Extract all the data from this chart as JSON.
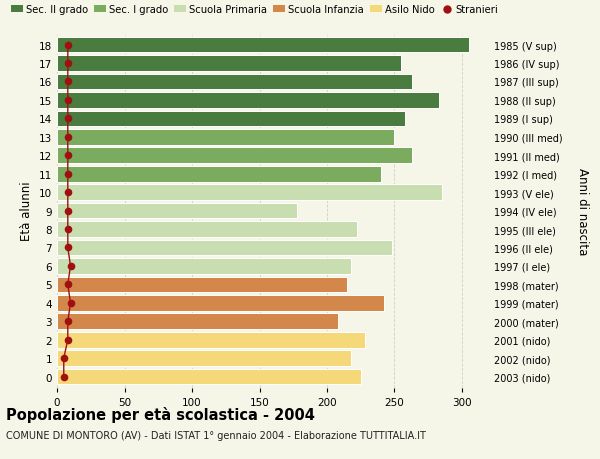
{
  "ages": [
    18,
    17,
    16,
    15,
    14,
    13,
    12,
    11,
    10,
    9,
    8,
    7,
    6,
    5,
    4,
    3,
    2,
    1,
    0
  ],
  "right_labels": [
    "1985 (V sup)",
    "1986 (IV sup)",
    "1987 (III sup)",
    "1988 (II sup)",
    "1989 (I sup)",
    "1990 (III med)",
    "1991 (II med)",
    "1992 (I med)",
    "1993 (V ele)",
    "1994 (IV ele)",
    "1995 (III ele)",
    "1996 (II ele)",
    "1997 (I ele)",
    "1998 (mater)",
    "1999 (mater)",
    "2000 (mater)",
    "2001 (nido)",
    "2002 (nido)",
    "2003 (nido)"
  ],
  "bar_values": [
    305,
    255,
    263,
    283,
    258,
    250,
    263,
    240,
    285,
    178,
    222,
    248,
    218,
    215,
    242,
    208,
    228,
    218,
    225
  ],
  "stranieri_values": [
    8,
    8,
    8,
    8,
    8,
    8,
    8,
    8,
    8,
    8,
    8,
    8,
    10,
    8,
    10,
    8,
    8,
    5,
    5
  ],
  "bar_colors": [
    "#4a7c3f",
    "#4a7c3f",
    "#4a7c3f",
    "#4a7c3f",
    "#4a7c3f",
    "#7aab5e",
    "#7aab5e",
    "#7aab5e",
    "#c8deb0",
    "#c8deb0",
    "#c8deb0",
    "#c8deb0",
    "#c8deb0",
    "#d4874a",
    "#d4874a",
    "#d4874a",
    "#f5d87a",
    "#f5d87a",
    "#f5d87a"
  ],
  "legend_labels": [
    "Sec. II grado",
    "Sec. I grado",
    "Scuola Primaria",
    "Scuola Infanzia",
    "Asilo Nido",
    "Stranieri"
  ],
  "legend_colors": [
    "#4a7c3f",
    "#7aab5e",
    "#c8deb0",
    "#d4874a",
    "#f5d87a",
    "#b22222"
  ],
  "title_main": "Popolazione per età scolastica - 2004",
  "title_sub": "COMUNE DI MONTORO (AV) - Dati ISTAT 1° gennaio 2004 - Elaborazione TUTTITALIA.IT",
  "ylabel_left": "Età alunni",
  "ylabel_right": "Anni di nascita",
  "xlim": [
    0,
    320
  ],
  "background_color": "#f5f5e8",
  "bar_height": 0.85,
  "grid_color": "#d0d0c0",
  "stranieri_color": "#a01010"
}
